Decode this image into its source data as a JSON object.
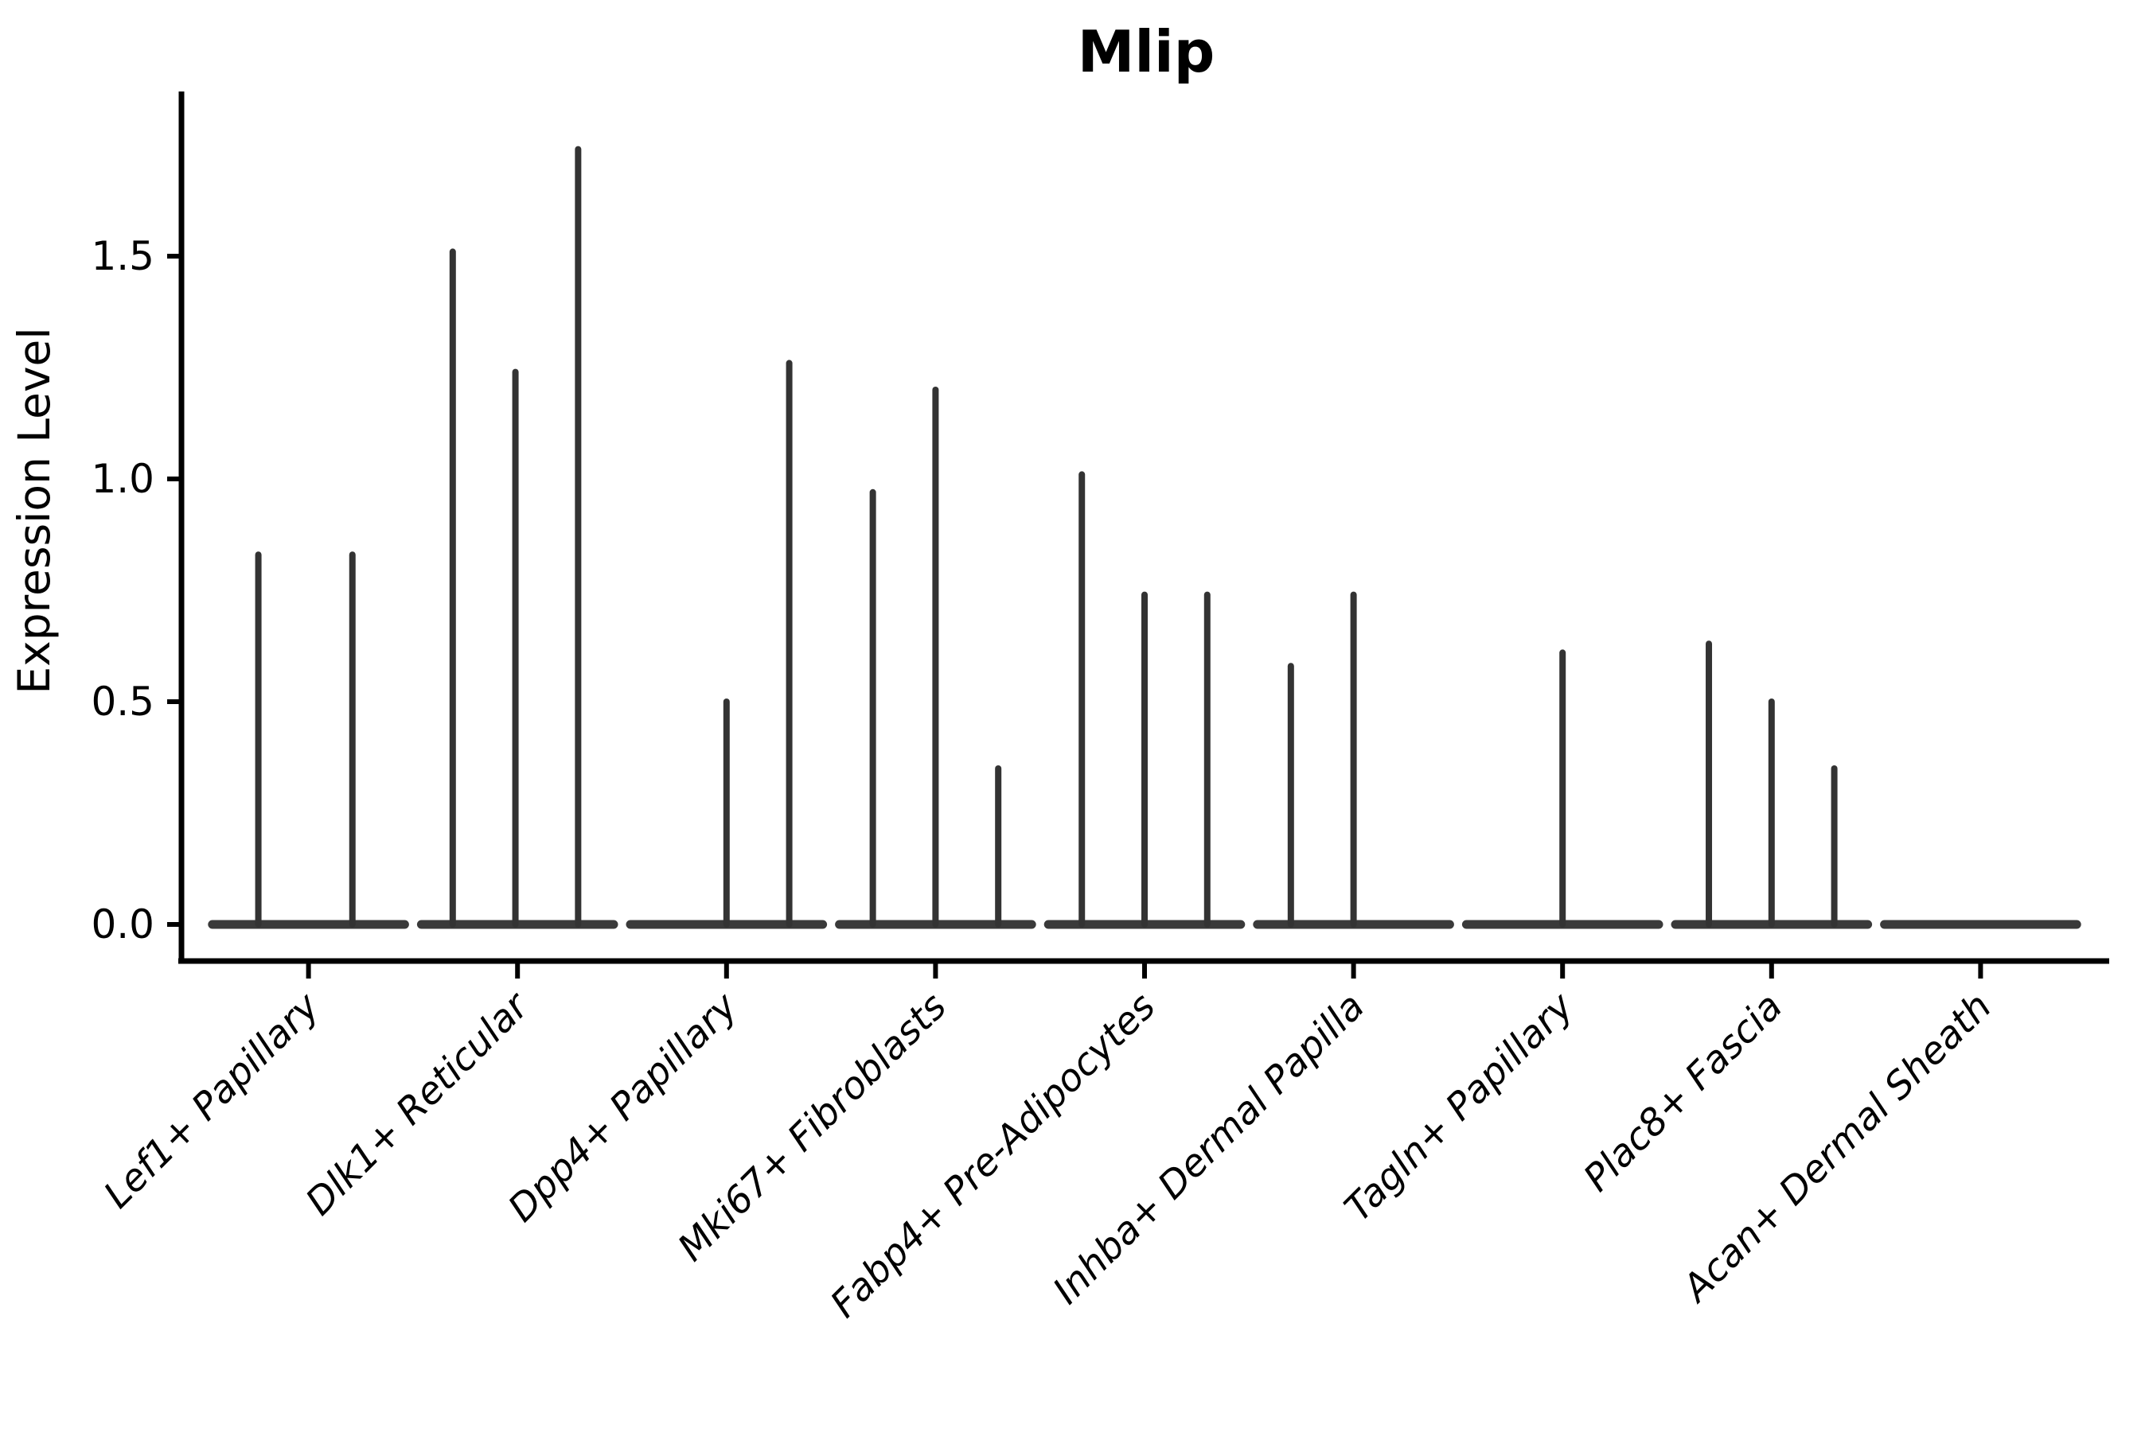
{
  "chart_data": {
    "type": "violin",
    "title": "Mlip",
    "xlabel": "",
    "ylabel": "Expression Level",
    "grid": false,
    "legend": "none",
    "ylim": [
      -0.08,
      1.87
    ],
    "yticks": [
      {
        "value": 0.0,
        "label": "0.0"
      },
      {
        "value": 0.5,
        "label": "0.5"
      },
      {
        "value": 1.0,
        "label": "1.0"
      },
      {
        "value": 1.5,
        "label": "1.5"
      }
    ],
    "categories": [
      "Lef1+ Papillary",
      "Dlk1+ Reticular",
      "Dpp4+ Papillary",
      "Mki67+ Fibroblasts",
      "Fabp4+ Pre-Adipocytes",
      "Inhba+ Dermal Papilla",
      "Tagln+ Papillary",
      "Plac8+ Fascia",
      "Acan+ Dermal Sheath"
    ],
    "violins": [
      {
        "category": "Lef1+ Papillary",
        "zero_body_halfwidth": 0.46,
        "spikes": [
          {
            "offset": -0.24,
            "max": 0.83
          },
          {
            "offset": 0.21,
            "max": 0.83
          }
        ]
      },
      {
        "category": "Dlk1+ Reticular",
        "zero_body_halfwidth": 0.46,
        "spikes": [
          {
            "offset": -0.31,
            "max": 1.51
          },
          {
            "offset": -0.01,
            "max": 1.24
          },
          {
            "offset": 0.29,
            "max": 1.74
          }
        ]
      },
      {
        "category": "Dpp4+ Papillary",
        "zero_body_halfwidth": 0.46,
        "spikes": [
          {
            "offset": 0.0,
            "max": 0.5
          },
          {
            "offset": 0.3,
            "max": 1.26
          }
        ]
      },
      {
        "category": "Mki67+ Fibroblasts",
        "zero_body_halfwidth": 0.46,
        "spikes": [
          {
            "offset": -0.3,
            "max": 0.97
          },
          {
            "offset": 0.0,
            "max": 1.2
          },
          {
            "offset": 0.3,
            "max": 0.35
          }
        ]
      },
      {
        "category": "Fabp4+ Pre-Adipocytes",
        "zero_body_halfwidth": 0.46,
        "spikes": [
          {
            "offset": -0.3,
            "max": 1.01
          },
          {
            "offset": 0.0,
            "max": 0.74
          },
          {
            "offset": 0.3,
            "max": 0.74
          }
        ]
      },
      {
        "category": "Inhba+ Dermal Papilla",
        "zero_body_halfwidth": 0.46,
        "spikes": [
          {
            "offset": -0.3,
            "max": 0.58
          },
          {
            "offset": 0.0,
            "max": 0.74
          }
        ]
      },
      {
        "category": "Tagln+ Papillary",
        "zero_body_halfwidth": 0.46,
        "spikes": [
          {
            "offset": 0.0,
            "max": 0.61
          }
        ]
      },
      {
        "category": "Plac8+ Fascia",
        "zero_body_halfwidth": 0.46,
        "spikes": [
          {
            "offset": -0.3,
            "max": 0.63
          },
          {
            "offset": 0.0,
            "max": 0.5
          },
          {
            "offset": 0.3,
            "max": 0.35
          }
        ]
      },
      {
        "category": "Acan+ Dermal Sheath",
        "zero_body_halfwidth": 0.46,
        "spikes": []
      }
    ],
    "colors": {
      "spike": "#333333",
      "zero_body": "#3a3a3a",
      "axis": "#000000",
      "background": "#ffffff"
    }
  }
}
